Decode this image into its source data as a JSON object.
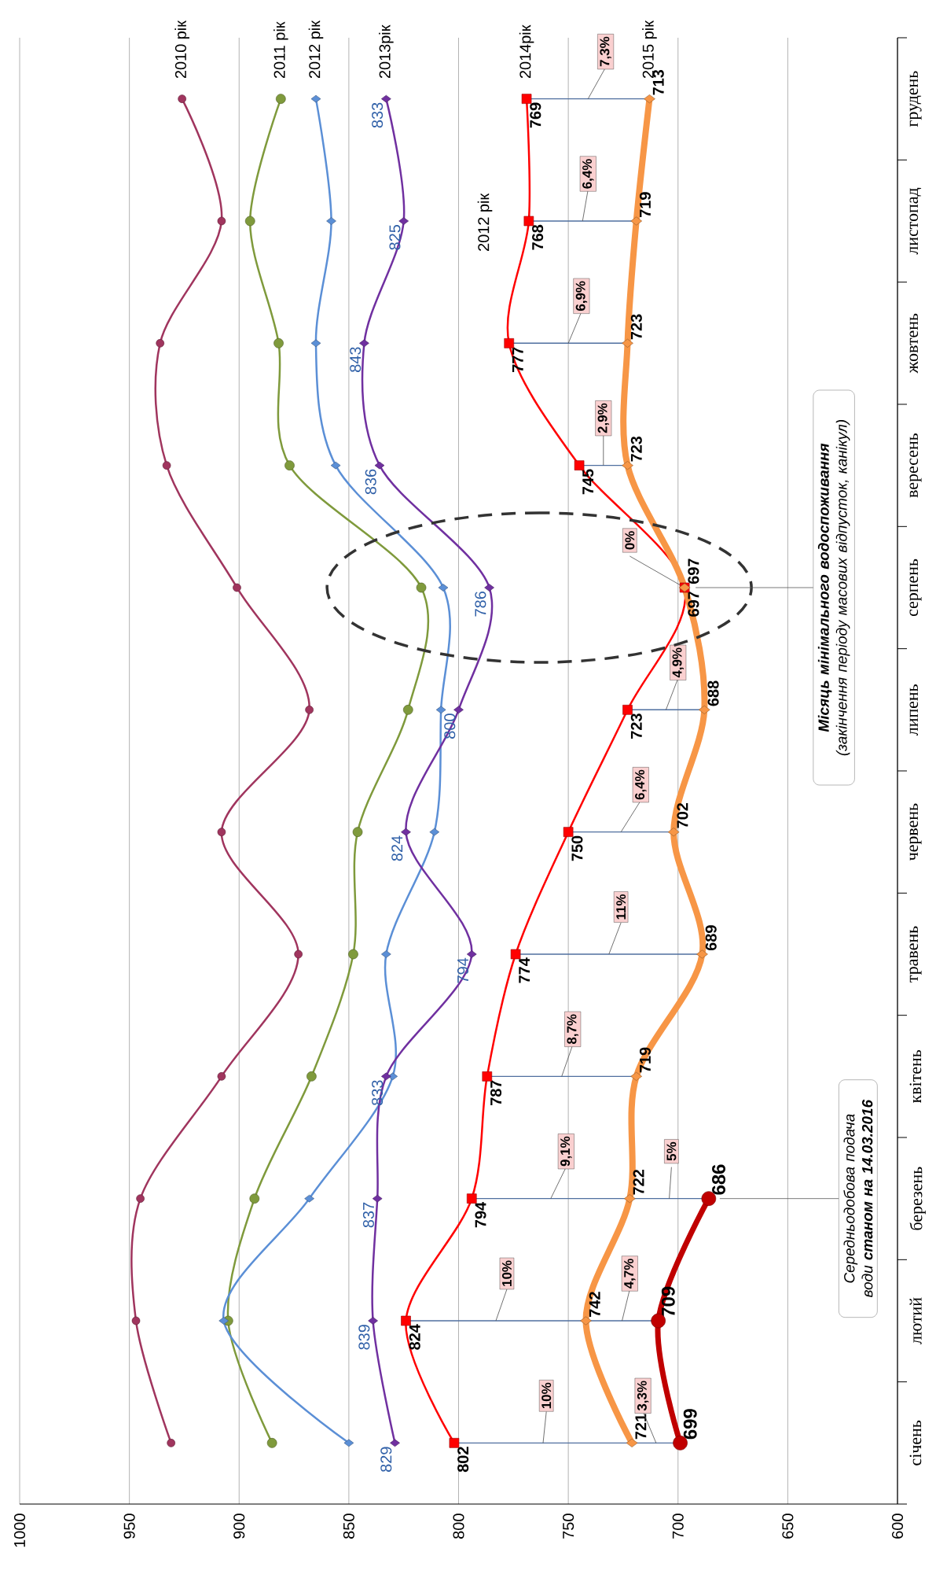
{
  "chart_data": {
    "type": "line",
    "orientation": "horizontal",
    "categories": [
      "грудень",
      "листопад",
      "жовтень",
      "вересень",
      "серпень",
      "липень",
      "червень",
      "травень",
      "квітень",
      "березень",
      "лютий",
      "січень"
    ],
    "xlim": [
      1000,
      600
    ],
    "xticks": [
      {
        "value": 600,
        "label": "600"
      },
      {
        "value": 650,
        "label": "650"
      },
      {
        "value": 700,
        "label": "700"
      },
      {
        "value": 750,
        "label": "750"
      },
      {
        "value": 800,
        "label": "800"
      },
      {
        "value": 850,
        "label": "850"
      },
      {
        "value": 900,
        "label": "900"
      },
      {
        "value": 950,
        "label": "950"
      },
      {
        "value": 1000,
        "label": "1000"
      }
    ],
    "grid": "x",
    "series": [
      {
        "name": "2010 рік",
        "color": "#a0355e",
        "marker": "circle",
        "values": [
          926,
          908,
          936,
          933,
          901,
          868,
          908,
          873,
          908,
          945,
          947,
          931
        ]
      },
      {
        "name": "2011 рік",
        "color": "#7f9a3c",
        "marker": "circle",
        "values": [
          881,
          895,
          882,
          877,
          817,
          823,
          846,
          848,
          867,
          893,
          905,
          885
        ]
      },
      {
        "name": "2012 рік",
        "color": "#5b8fd6",
        "marker": "diamond",
        "values": [
          865,
          858,
          865,
          856,
          807,
          808,
          811,
          833,
          830,
          868,
          907,
          850
        ]
      },
      {
        "name": "2013рік",
        "color": "#7030a0",
        "marker": "diamond",
        "values": [
          833,
          825,
          843,
          836,
          786,
          800,
          824,
          794,
          833,
          837,
          839,
          829
        ],
        "value_labels": [
          "833",
          "825",
          "843",
          "836",
          "786",
          "800",
          "824",
          "794",
          "833",
          "837",
          "839",
          "829"
        ]
      },
      {
        "name": "2014рік",
        "color": "#ff0000",
        "marker": "square",
        "values": [
          769,
          768,
          777,
          745,
          697,
          723,
          750,
          774,
          787,
          794,
          824,
          802
        ],
        "value_labels": [
          "769",
          "768",
          "777",
          "745",
          "697",
          "723",
          "750",
          "774",
          "787",
          "794",
          "824",
          "802"
        ]
      },
      {
        "name": "2015 рік",
        "color": "#f79646",
        "marker": "diamond",
        "values": [
          713,
          719,
          723,
          723,
          697,
          688,
          702,
          689,
          719,
          722,
          742,
          721
        ],
        "value_labels": [
          "713",
          "719",
          "723",
          "723",
          "697",
          "688",
          "702",
          "689",
          "719",
          "722",
          "742",
          "721"
        ]
      },
      {
        "color": "#c00000",
        "marker": "circle",
        "values": [
          null,
          null,
          null,
          null,
          null,
          null,
          null,
          null,
          null,
          686,
          709,
          699
        ],
        "value_labels": [
          null,
          null,
          null,
          null,
          null,
          null,
          null,
          null,
          null,
          "686",
          "709",
          "699"
        ]
      }
    ],
    "annotations": [
      "10%",
      "3,3%",
      "10%",
      "4,7%",
      "9,1%",
      "5%",
      "8,7%",
      "11%",
      "6,4%",
      "4,9%",
      {
        "text": "0%",
        "y": "серпень",
        "x": 697
      },
      "2,9%",
      "6,9%",
      "6,4%",
      "7,3%",
      "**Місяць мінімального водоспоживання** (закінчення періоду масових відпусток, канікул)",
      "Середньодобова подача води **станом на 14.03.2016**",
      "2012 рік"
    ]
  }
}
